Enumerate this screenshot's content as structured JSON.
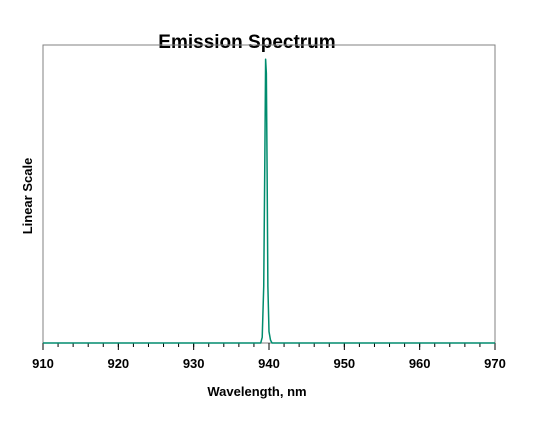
{
  "chart_data": {
    "type": "line",
    "title": "Emission Spectrum",
    "xlabel": "Wavelength, nm",
    "ylabel": "Linear Scale",
    "xlim": [
      910,
      970
    ],
    "ylim": [
      0,
      1.05
    ],
    "x_ticks": [
      "910",
      "920",
      "930",
      "940",
      "950",
      "960",
      "970"
    ],
    "x_tick_values": [
      910,
      920,
      930,
      940,
      950,
      960,
      970
    ],
    "x_minor_step": 2,
    "grid": false,
    "legend": "none",
    "color": "#008c6e",
    "series": [
      {
        "x": [
          910,
          938.9,
          939.1,
          939.3,
          939.45,
          939.55,
          939.65,
          939.75,
          939.85,
          940.0,
          940.2,
          940.4,
          970
        ],
        "values": [
          0,
          0,
          0.02,
          0.2,
          0.66,
          1.0,
          0.95,
          0.6,
          0.2,
          0.04,
          0.01,
          0,
          0
        ]
      }
    ]
  }
}
